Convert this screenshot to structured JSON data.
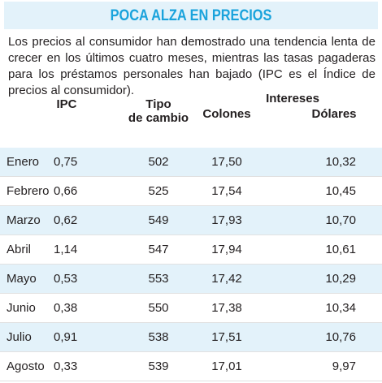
{
  "title": "POCA ALZA EN PRECIOS",
  "intro": "Los precios al consumidor han demostrado una tendencia lenta de crecer en los últimos cuatro meses, mientras las tasas pagaderas para los préstamos personales han bajado (IPC es el Índice de precios al consumidor).",
  "headers": {
    "ipc": "IPC",
    "tipo_line1": "Tipo",
    "tipo_line2": "de cambio",
    "intereses": "Intereses",
    "colones": "Colones",
    "dolares": "Dólares"
  },
  "colors": {
    "title": "#1aa3dc",
    "band": "#e3f2fa"
  },
  "rows": [
    {
      "mes": "Enero",
      "ipc": "0,75",
      "tipo": "502",
      "colones": "17,50",
      "dolares": "10,32"
    },
    {
      "mes": "Febrero",
      "ipc": "0,66",
      "tipo": "525",
      "colones": "17,54",
      "dolares": "10,45"
    },
    {
      "mes": "Marzo",
      "ipc": "0,62",
      "tipo": "549",
      "colones": "17,93",
      "dolares": "10,70"
    },
    {
      "mes": "Abril",
      "ipc": "1,14",
      "tipo": "547",
      "colones": "17,94",
      "dolares": "10,61"
    },
    {
      "mes": "Mayo",
      "ipc": "0,53",
      "tipo": "553",
      "colones": "17,42",
      "dolares": "10,29"
    },
    {
      "mes": "Junio",
      "ipc": "0,38",
      "tipo": "550",
      "colones": "17,38",
      "dolares": "10,34"
    },
    {
      "mes": "Julio",
      "ipc": "0,91",
      "tipo": "538",
      "colones": "17,51",
      "dolares": "10,76"
    },
    {
      "mes": "Agosto",
      "ipc": "0,33",
      "tipo": "539",
      "colones": "17,01",
      "dolares": "9,97"
    }
  ]
}
